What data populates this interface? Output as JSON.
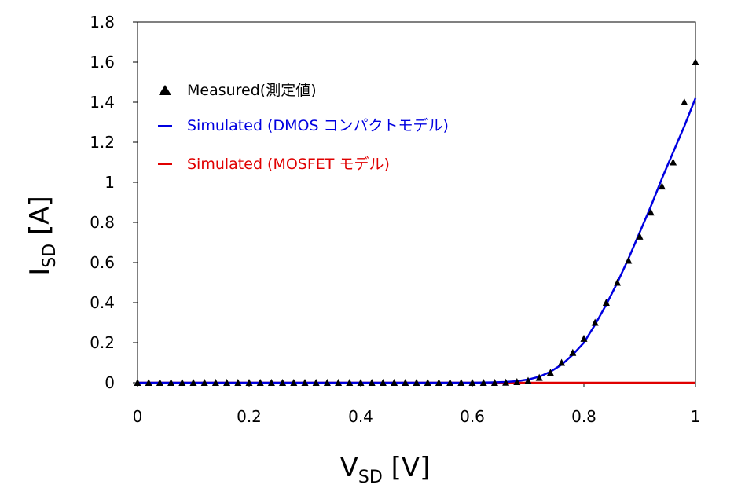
{
  "chart_data": {
    "type": "scatter",
    "xlabel": {
      "main": "V",
      "sub": "SD",
      "unit": " [V]"
    },
    "ylabel": {
      "main": "I",
      "sub": "SD",
      "unit": " [A]"
    },
    "xlim": [
      0,
      1
    ],
    "ylim": [
      0,
      1.8
    ],
    "xticks": [
      "0",
      "0.2",
      "0.4",
      "0.6",
      "0.8",
      "1"
    ],
    "yticks": [
      "0",
      "0.2",
      "0.4",
      "0.6",
      "0.8",
      "1",
      "1.2",
      "1.4",
      "1.6",
      "1.8"
    ],
    "grid": false,
    "legend_position": "top-left",
    "series": [
      {
        "name": "Measured(測定値)",
        "kind": "scatter",
        "marker": "triangle",
        "color": "#000000",
        "x": [
          0,
          0.02,
          0.04,
          0.06,
          0.08,
          0.1,
          0.12,
          0.14,
          0.16,
          0.18,
          0.2,
          0.22,
          0.24,
          0.26,
          0.28,
          0.3,
          0.32,
          0.34,
          0.36,
          0.38,
          0.4,
          0.42,
          0.44,
          0.46,
          0.48,
          0.5,
          0.52,
          0.54,
          0.56,
          0.58,
          0.6,
          0.62,
          0.64,
          0.66,
          0.68,
          0.7,
          0.72,
          0.74,
          0.76,
          0.78,
          0.8,
          0.82,
          0.84,
          0.86,
          0.88,
          0.9,
          0.92,
          0.94,
          0.96,
          0.98,
          1.0
        ],
        "y": [
          0,
          0,
          0,
          0,
          0,
          0,
          0,
          0,
          0,
          0,
          0,
          0,
          0,
          0,
          0,
          0,
          0,
          0,
          0,
          0,
          0,
          0,
          0,
          0,
          0,
          0,
          0,
          0,
          0,
          0,
          0,
          0,
          0,
          0.001,
          0.004,
          0.01,
          0.025,
          0.05,
          0.1,
          0.15,
          0.22,
          0.3,
          0.4,
          0.5,
          0.61,
          0.73,
          0.85,
          0.98,
          1.1,
          1.4,
          1.6
        ]
      },
      {
        "name": "Simulated (DMOS コンパクトモデル)",
        "kind": "line",
        "color": "#0000e0",
        "x": [
          0,
          0.6,
          0.62,
          0.64,
          0.66,
          0.68,
          0.7,
          0.72,
          0.74,
          0.76,
          0.78,
          0.8,
          0.82,
          0.84,
          0.86,
          0.88,
          0.9,
          0.92,
          0.94,
          0.96,
          0.98,
          1.0
        ],
        "y": [
          0,
          0,
          0.001,
          0.002,
          0.004,
          0.008,
          0.016,
          0.03,
          0.055,
          0.09,
          0.14,
          0.2,
          0.29,
          0.39,
          0.5,
          0.62,
          0.75,
          0.88,
          1.02,
          1.15,
          1.28,
          1.42
        ]
      },
      {
        "name": "Simulated (MOSFET モデル)",
        "kind": "line",
        "color": "#e00000",
        "x": [
          0,
          1.0
        ],
        "y": [
          0,
          0
        ]
      }
    ]
  }
}
